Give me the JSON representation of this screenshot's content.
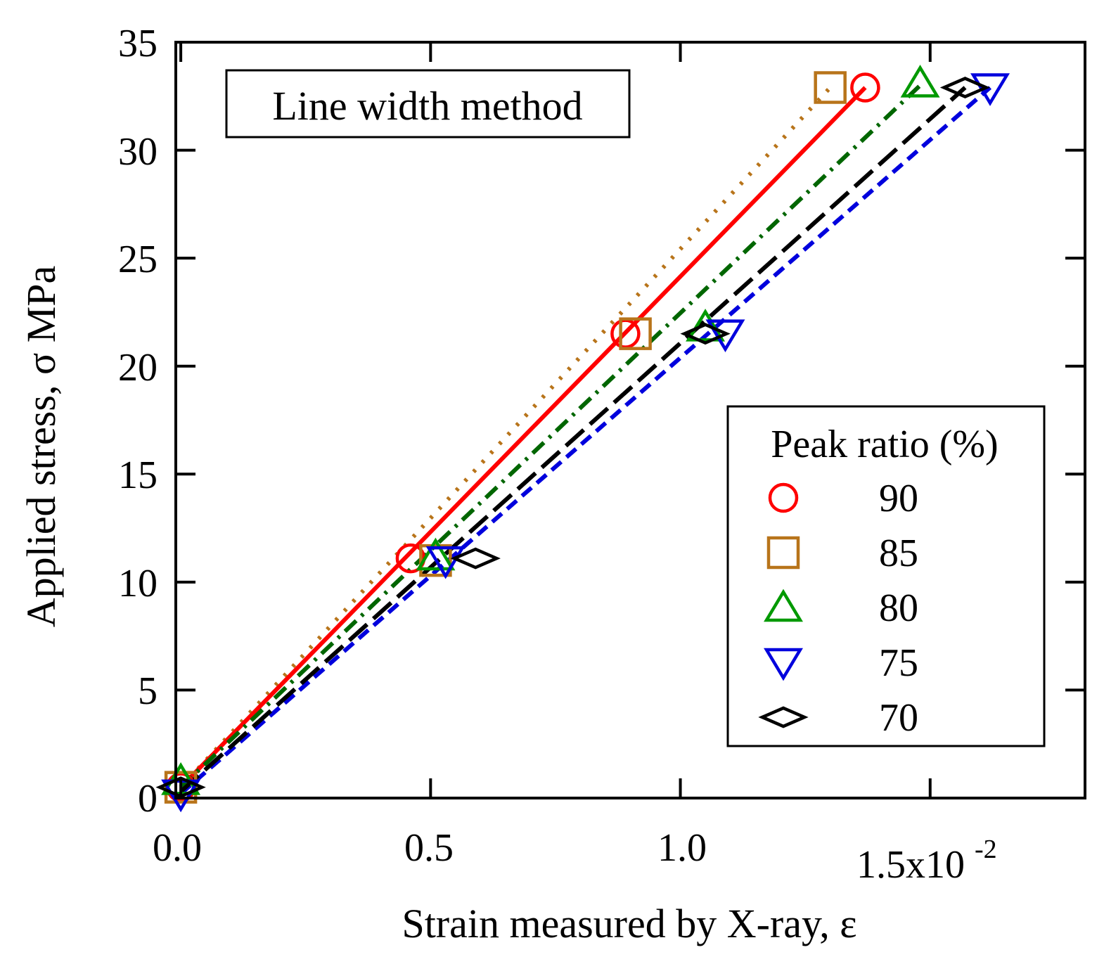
{
  "chart_data": {
    "type": "line",
    "title": "",
    "annotation": "Line width method",
    "xlabel": "Strain measured by X-ray, ε",
    "ylabel": "Applied stress, σ MPa",
    "xlim": [
      -0.0001,
      0.0181
    ],
    "ylim": [
      0,
      35
    ],
    "x_ticks": [
      {
        "value": 0.0,
        "label": "0.0"
      },
      {
        "value": 0.005,
        "label": "0.5"
      },
      {
        "value": 0.01,
        "label": "1.0"
      }
    ],
    "x_last_tick": {
      "value": 0.015,
      "mantissa": "1.5x10",
      "exponent": "-2"
    },
    "y_ticks": [
      {
        "value": 0,
        "label": "0"
      },
      {
        "value": 5,
        "label": "5"
      },
      {
        "value": 10,
        "label": "10"
      },
      {
        "value": 15,
        "label": "15"
      },
      {
        "value": 20,
        "label": "20"
      },
      {
        "value": 25,
        "label": "25"
      },
      {
        "value": 30,
        "label": "30"
      },
      {
        "value": 35,
        "label": "35"
      }
    ],
    "grid": false,
    "legend": {
      "title": "Peak ratio (%)",
      "position": "bottom-right"
    },
    "series": [
      {
        "name": "90",
        "marker": "circle",
        "color": "#ff0000",
        "line": "solid",
        "x": [
          0.0,
          0.0046,
          0.0089,
          0.0137
        ],
        "y": [
          0.5,
          11.1,
          21.5,
          32.9
        ]
      },
      {
        "name": "85",
        "marker": "square",
        "color": "#b8741a",
        "line": "dotted",
        "x": [
          0.0,
          0.0051,
          0.0091,
          0.013
        ],
        "y": [
          0.5,
          11.0,
          21.5,
          32.9
        ]
      },
      {
        "name": "80",
        "marker": "triangle-up",
        "color": "#009900",
        "line": "dashdot",
        "x": [
          0.0,
          0.0051,
          0.0105,
          0.0148
        ],
        "y": [
          0.8,
          11.2,
          21.8,
          33.1
        ]
      },
      {
        "name": "75",
        "marker": "triangle-down",
        "color": "#0000dd",
        "line": "dashed",
        "x": [
          0.0,
          0.0053,
          0.0109,
          0.0162
        ],
        "y": [
          0.2,
          11.0,
          21.5,
          32.9
        ]
      },
      {
        "name": "70",
        "marker": "diamond",
        "color": "#000000",
        "line": "longdash",
        "x": [
          0.0,
          0.0059,
          0.0105,
          0.0157
        ],
        "y": [
          0.5,
          11.1,
          21.5,
          32.9
        ]
      }
    ],
    "fit_lines": [
      {
        "series": "85",
        "color": "#b8741a",
        "dash": "4 14",
        "x": [
          0.0,
          0.013
        ],
        "y": [
          0.5,
          32.9
        ]
      },
      {
        "series": "90",
        "color": "#ff0000",
        "dash": "",
        "x": [
          0.0,
          0.0137
        ],
        "y": [
          0.5,
          32.9
        ]
      },
      {
        "series": "80",
        "color": "#006600",
        "dash": "22 10 4 10",
        "x": [
          0.0,
          0.0148
        ],
        "y": [
          0.5,
          33.0
        ]
      },
      {
        "series": "75",
        "color": "#0000dd",
        "dash": "18 10",
        "x": [
          0.0,
          0.0162
        ],
        "y": [
          0.2,
          32.9
        ]
      },
      {
        "series": "70",
        "color": "#000000",
        "dash": "34 12",
        "x": [
          0.0,
          0.0157
        ],
        "y": [
          0.3,
          32.9
        ]
      }
    ]
  }
}
